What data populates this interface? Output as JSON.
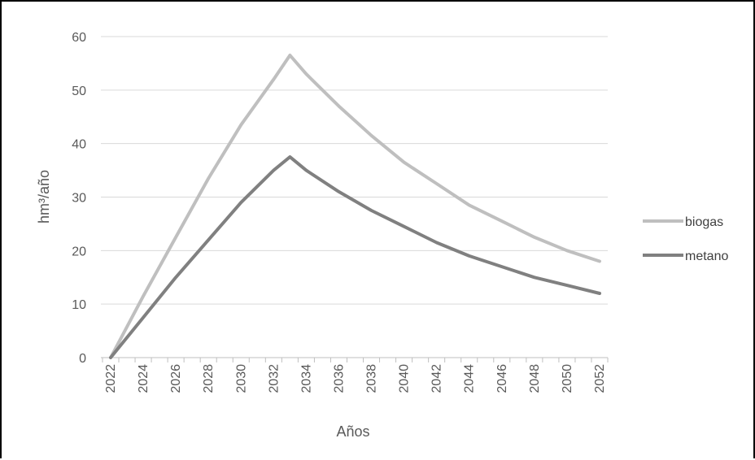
{
  "chart_data": {
    "type": "line",
    "title": "",
    "xlabel": "Años",
    "ylabel": "hm³/año",
    "ylim": [
      0,
      60
    ],
    "xlim": [
      2022,
      2052
    ],
    "yticks": [
      0,
      10,
      20,
      30,
      40,
      50,
      60
    ],
    "xticks": [
      2022,
      2024,
      2026,
      2028,
      2030,
      2032,
      2034,
      2036,
      2038,
      2040,
      2042,
      2044,
      2046,
      2048,
      2050,
      2052
    ],
    "grid": true,
    "legend_position": "right",
    "series": [
      {
        "name": "biogas",
        "color": "#bfbfbf",
        "x": [
          2022,
          2024,
          2026,
          2028,
          2030,
          2032,
          2033,
          2034,
          2036,
          2038,
          2040,
          2042,
          2044,
          2046,
          2048,
          2050,
          2052
        ],
        "values": [
          0,
          11.5,
          22.5,
          33.5,
          43.5,
          52,
          56.5,
          53,
          47,
          41.5,
          36.5,
          32.5,
          28.5,
          25.5,
          22.5,
          20,
          18
        ]
      },
      {
        "name": "metano",
        "color": "#808080",
        "x": [
          2022,
          2024,
          2026,
          2028,
          2030,
          2032,
          2033,
          2034,
          2036,
          2038,
          2040,
          2042,
          2044,
          2046,
          2048,
          2050,
          2052
        ],
        "values": [
          0,
          7.5,
          15,
          22,
          29,
          35,
          37.5,
          35,
          31,
          27.5,
          24.5,
          21.5,
          19,
          17,
          15,
          13.5,
          12
        ]
      }
    ]
  }
}
